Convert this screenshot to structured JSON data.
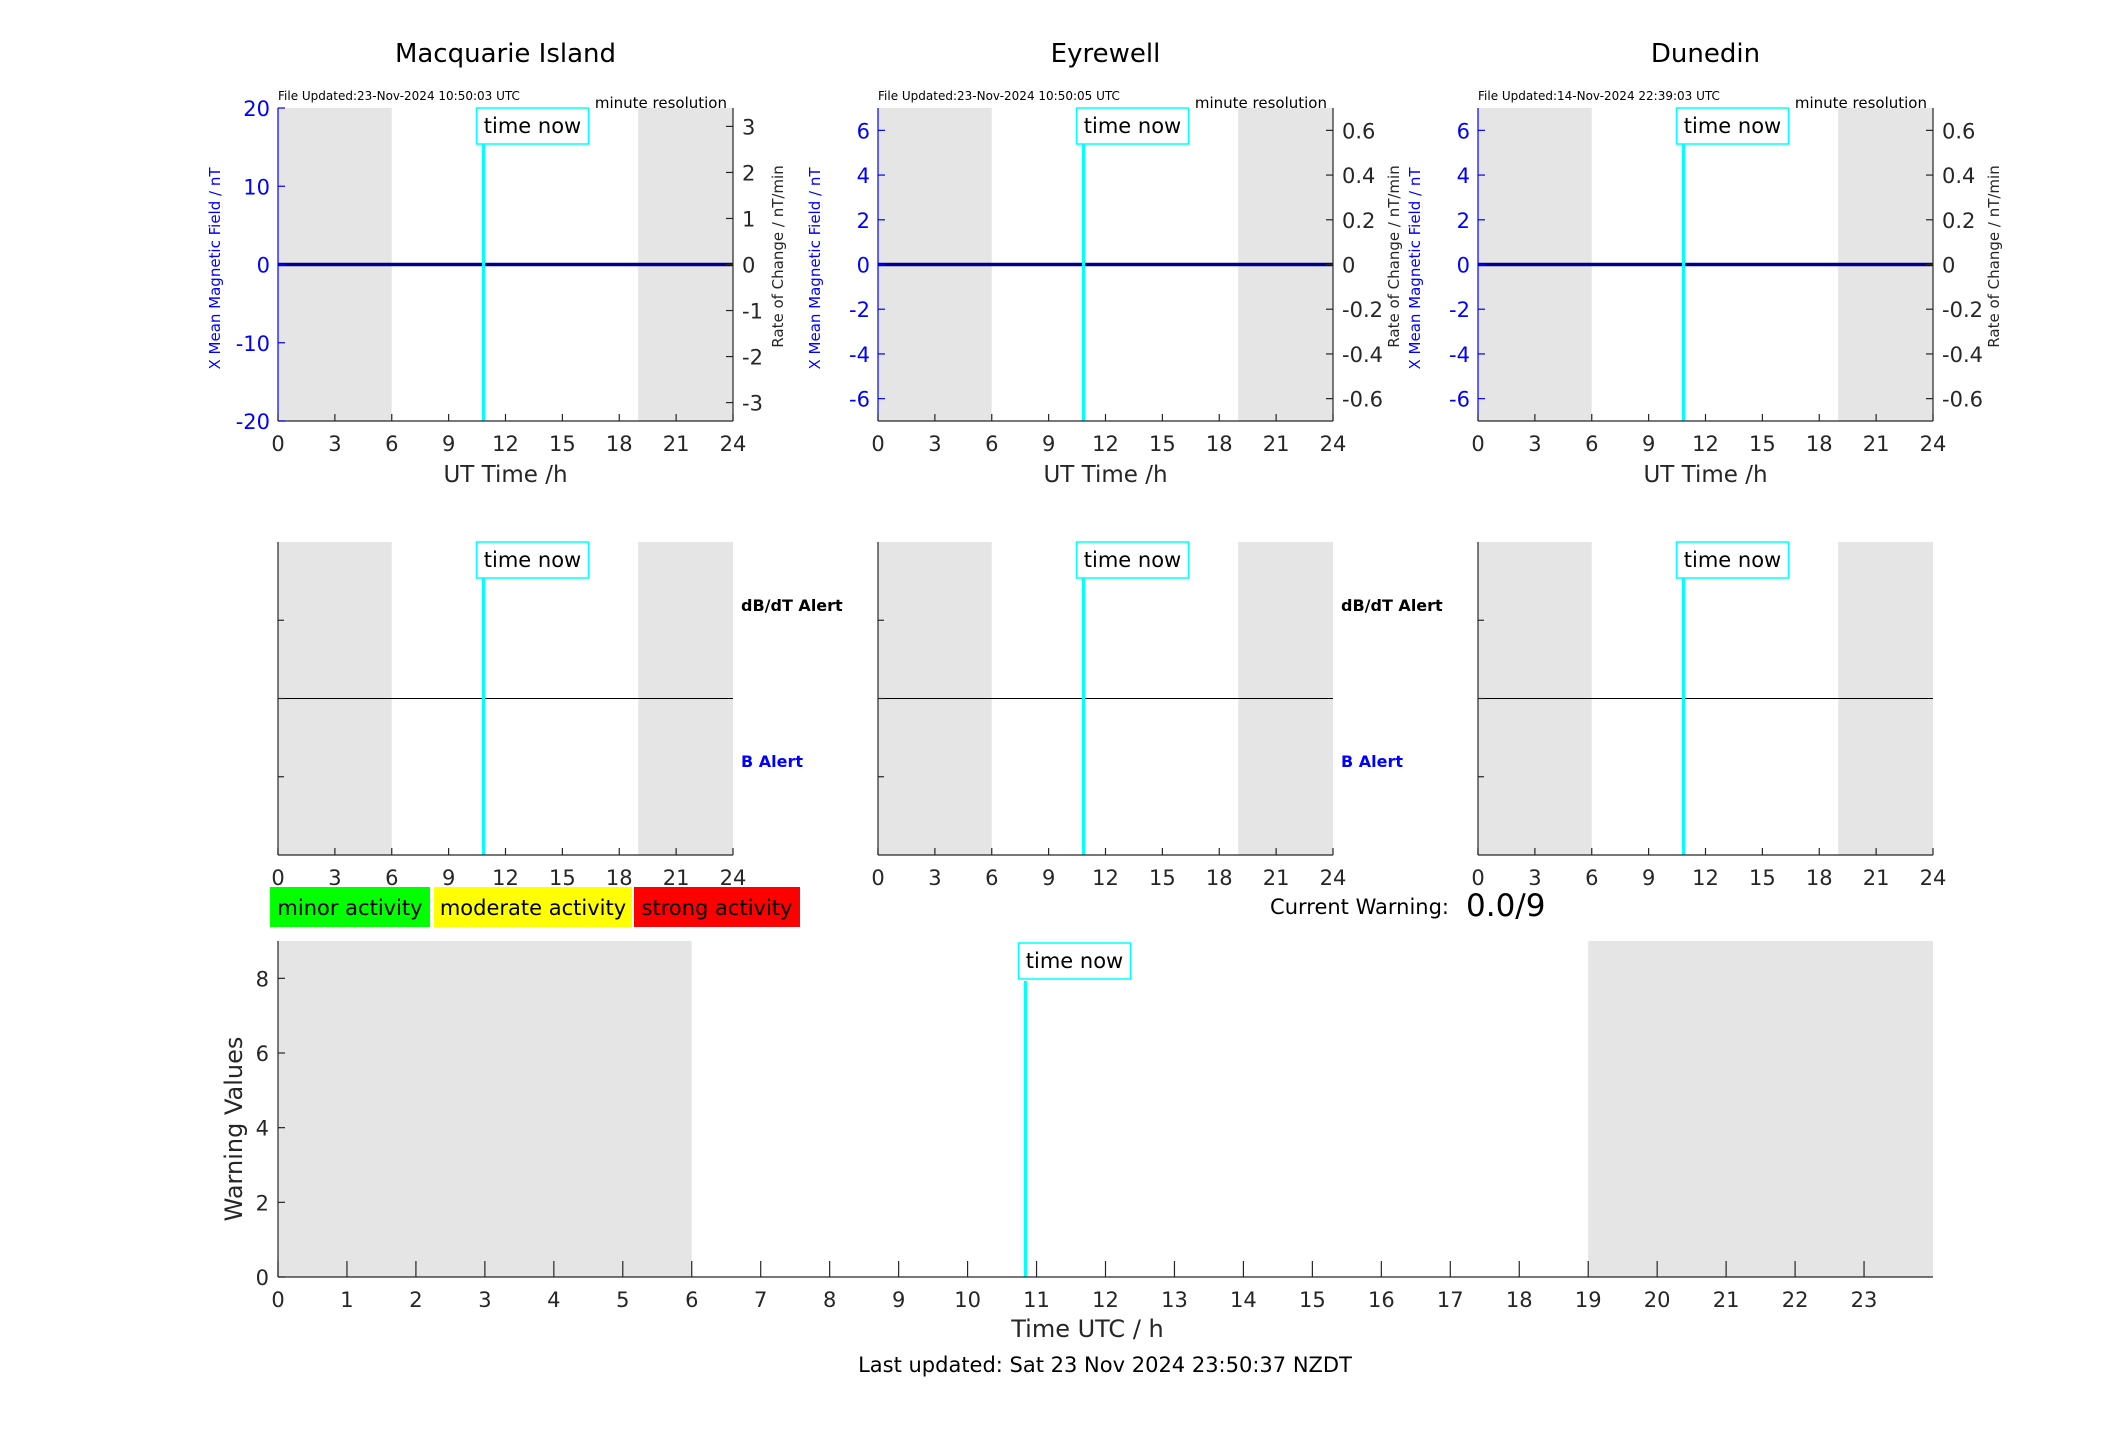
{
  "colors": {
    "series": "#00008b",
    "axis_left": "#0000ff",
    "time_now": "#00ffff",
    "night_shade": "#e5e5e5",
    "minor": "#00ff00",
    "moderate": "#ffff00",
    "strong": "#ff0000"
  },
  "time_now_label": "time now",
  "stations": [
    {
      "title": "Macquarie Island",
      "file_updated": "File Updated:23-Nov-2024 10:50:03 UTC",
      "resolution": "minute resolution",
      "y_left_label": "X Mean Magnetic Field / nT",
      "y_right_label": "Rate of Change / nT/min",
      "x_label": "UT Time /h",
      "alert_dbdt": "dB/dT Alert",
      "alert_b": "B Alert"
    },
    {
      "title": "Eyrewell",
      "file_updated": "File Updated:23-Nov-2024 10:50:05 UTC",
      "resolution": "minute resolution",
      "y_left_label": "X Mean Magnetic Field / nT",
      "y_right_label": "Rate of Change / nT/min",
      "x_label": "UT Time /h",
      "alert_dbdt": "dB/dT Alert",
      "alert_b": "B Alert"
    },
    {
      "title": "Dunedin",
      "file_updated": "File Updated:14-Nov-2024 22:39:03 UTC",
      "resolution": "minute resolution",
      "y_left_label": "X Mean Magnetic Field / nT",
      "y_right_label": "Rate of Change / nT/min",
      "x_label": "UT Time /h"
    }
  ],
  "legend": {
    "minor": "minor activity",
    "moderate": "moderate activity",
    "strong": "strong activity"
  },
  "current_warning": {
    "label": "Current Warning:",
    "value": "0.0/9"
  },
  "warning_chart": {
    "ylabel": "Warning Values",
    "xlabel": "Time UTC / h"
  },
  "last_updated": "Last updated: Sat 23 Nov 2024 23:50:37 NZDT",
  "chart_data": [
    {
      "type": "line",
      "station": "Macquarie Island",
      "xlim": [
        0,
        24
      ],
      "xticks": [
        0,
        3,
        6,
        9,
        12,
        15,
        18,
        21,
        24
      ],
      "ylim_left": [
        -20,
        20
      ],
      "yticks_left": [
        -20,
        -10,
        0,
        10,
        20
      ],
      "ylim_right": [
        -3.4,
        3.4
      ],
      "yticks_right": [
        -3,
        -2,
        -1,
        0,
        1,
        2,
        3
      ],
      "night_bands": [
        [
          0,
          6
        ],
        [
          19,
          24
        ]
      ],
      "time_now": 10.84,
      "series": [
        {
          "x": [
            0,
            24
          ],
          "values": [
            0,
            0
          ]
        }
      ]
    },
    {
      "type": "line",
      "station": "Eyrewell",
      "xlim": [
        0,
        24
      ],
      "xticks": [
        0,
        3,
        6,
        9,
        12,
        15,
        18,
        21,
        24
      ],
      "ylim_left": [
        -7,
        7
      ],
      "yticks_left": [
        -6,
        -4,
        -2,
        0,
        2,
        4,
        6
      ],
      "ylim_right": [
        -0.7,
        0.7
      ],
      "yticks_right": [
        -0.6,
        -0.4,
        -0.2,
        0,
        0.2,
        0.4,
        0.6
      ],
      "night_bands": [
        [
          0,
          6
        ],
        [
          19,
          24
        ]
      ],
      "time_now": 10.84,
      "series": [
        {
          "x": [
            0,
            24
          ],
          "values": [
            0,
            0
          ]
        }
      ]
    },
    {
      "type": "line",
      "station": "Dunedin",
      "xlim": [
        0,
        24
      ],
      "xticks": [
        0,
        3,
        6,
        9,
        12,
        15,
        18,
        21,
        24
      ],
      "ylim_left": [
        -7,
        7
      ],
      "yticks_left": [
        -6,
        -4,
        -2,
        0,
        2,
        4,
        6
      ],
      "ylim_right": [
        -0.7,
        0.7
      ],
      "yticks_right": [
        -0.6,
        -0.4,
        -0.2,
        0,
        0.2,
        0.4,
        0.6
      ],
      "night_bands": [
        [
          0,
          6
        ],
        [
          19,
          24
        ]
      ],
      "time_now": 10.84,
      "series": [
        {
          "x": [
            0,
            24
          ],
          "values": [
            0,
            0
          ]
        }
      ]
    },
    {
      "type": "line",
      "panel": "alerts",
      "xlim": [
        0,
        24
      ],
      "xticks": [
        0,
        3,
        6,
        9,
        12,
        15,
        18,
        21,
        24
      ],
      "night_bands": [
        [
          0,
          6
        ],
        [
          19,
          24
        ]
      ],
      "time_now": 10.84,
      "center_line": true
    },
    {
      "type": "bar",
      "panel": "warning-values",
      "xlim": [
        0,
        24
      ],
      "xticks": [
        0,
        1,
        2,
        3,
        4,
        5,
        6,
        7,
        8,
        9,
        10,
        11,
        12,
        13,
        14,
        15,
        16,
        17,
        18,
        19,
        20,
        21,
        22,
        23
      ],
      "ylim": [
        0,
        9
      ],
      "yticks": [
        0,
        2,
        4,
        6,
        8
      ],
      "night_bands": [
        [
          0,
          6
        ],
        [
          19,
          24
        ]
      ],
      "time_now": 10.84,
      "values": []
    }
  ]
}
